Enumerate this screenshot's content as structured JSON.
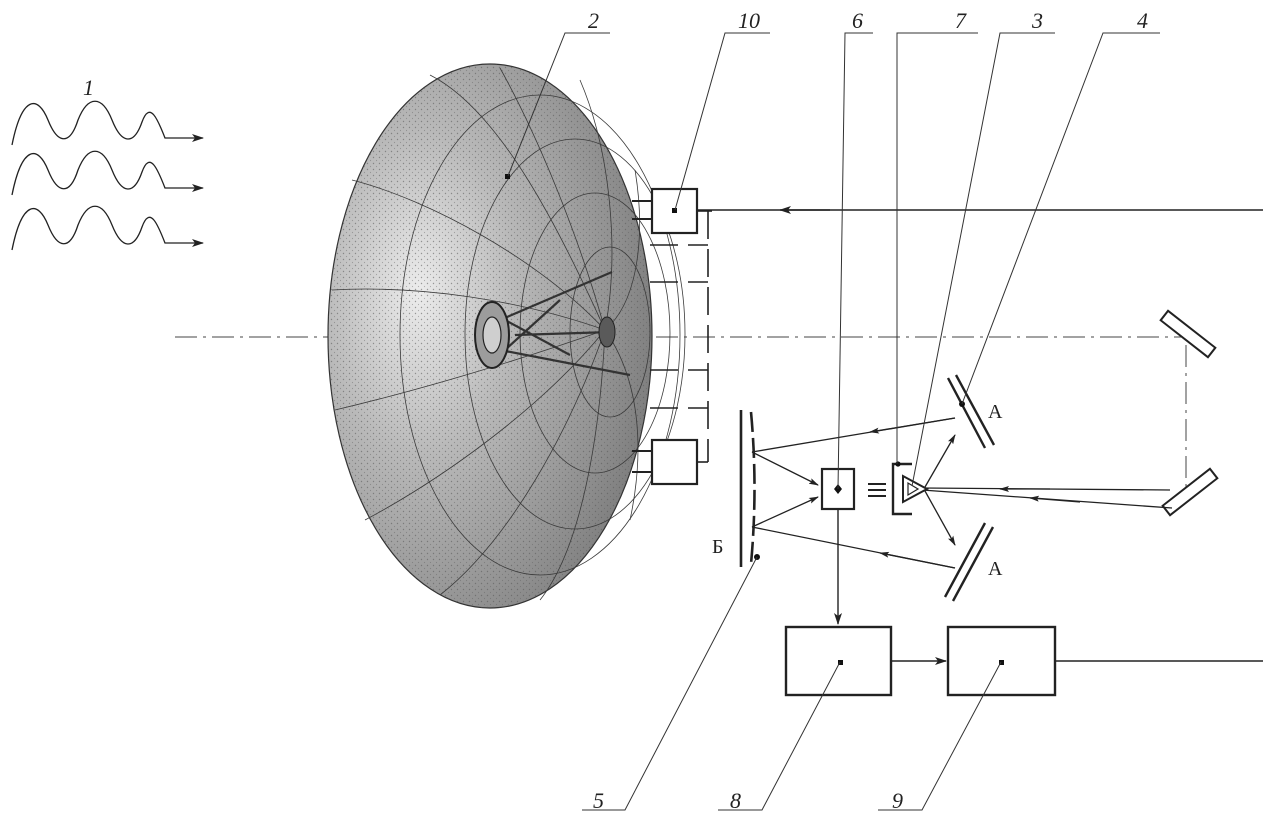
{
  "labels": {
    "n1": "1",
    "n2": "2",
    "n3": "3",
    "n4": "4",
    "n5": "5",
    "n6": "6",
    "n7": "7",
    "n8": "8",
    "n9": "9",
    "n10": "10"
  },
  "letters": {
    "a_upper": "А",
    "a_lower": "А",
    "b": "Б"
  },
  "colors": {
    "ink": "#222222",
    "dish_dark": "#7a7a7a",
    "dish_light": "#e2e2e2"
  }
}
